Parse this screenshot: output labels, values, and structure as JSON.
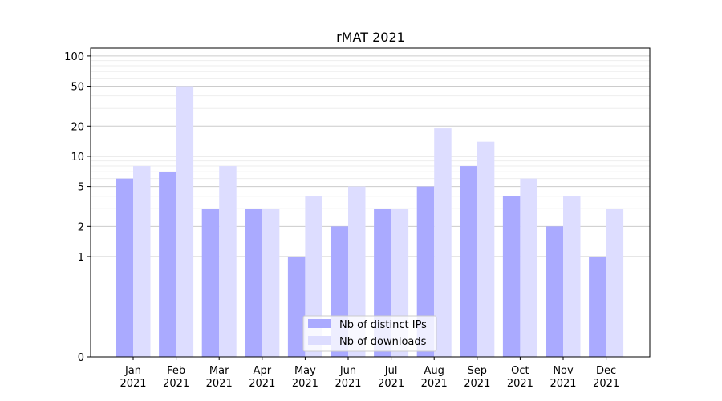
{
  "chart_data": {
    "type": "bar",
    "title": "rMAT 2021",
    "xlabel": "",
    "ylabel": "",
    "y_scale": "symlog",
    "ylim": [
      0,
      120
    ],
    "y_ticks": [
      0,
      1,
      2,
      5,
      10,
      20,
      50,
      100
    ],
    "y_tick_labels": [
      "0",
      "1",
      "2",
      "5",
      "10",
      "20",
      "50",
      "100"
    ],
    "categories": [
      {
        "month": "Jan",
        "year": "2021"
      },
      {
        "month": "Feb",
        "year": "2021"
      },
      {
        "month": "Mar",
        "year": "2021"
      },
      {
        "month": "Apr",
        "year": "2021"
      },
      {
        "month": "May",
        "year": "2021"
      },
      {
        "month": "Jun",
        "year": "2021"
      },
      {
        "month": "Jul",
        "year": "2021"
      },
      {
        "month": "Aug",
        "year": "2021"
      },
      {
        "month": "Sep",
        "year": "2021"
      },
      {
        "month": "Oct",
        "year": "2021"
      },
      {
        "month": "Nov",
        "year": "2021"
      },
      {
        "month": "Dec",
        "year": "2021"
      }
    ],
    "series": [
      {
        "name": "Nb of distinct IPs",
        "color": "#aaaaff",
        "values": [
          6,
          7,
          3,
          3,
          1,
          2,
          3,
          5,
          8,
          4,
          2,
          1
        ]
      },
      {
        "name": "Nb of downloads",
        "color": "#ddddff",
        "values": [
          8,
          50,
          8,
          3,
          4,
          5,
          3,
          19,
          14,
          6,
          4,
          3
        ]
      }
    ],
    "grid": true,
    "legend_position": "bottom-center"
  }
}
